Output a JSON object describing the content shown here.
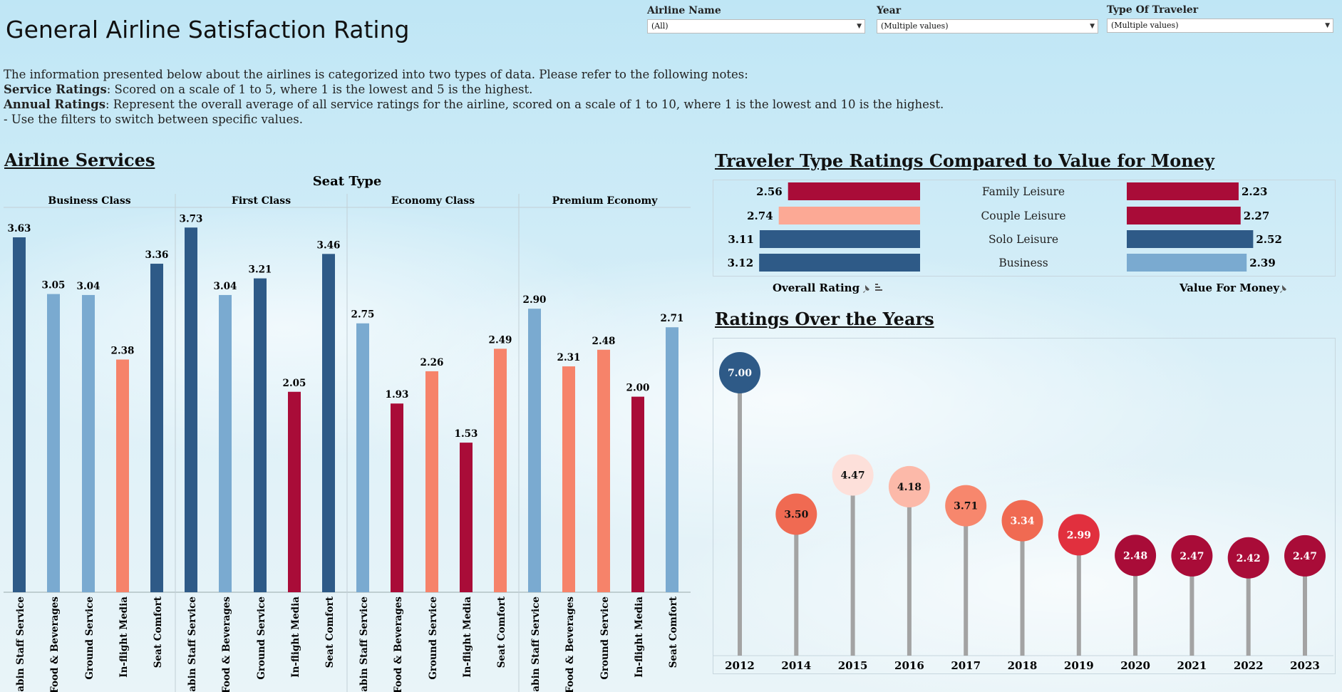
{
  "page": {
    "title": "General Airline Satisfaction Rating"
  },
  "filters": [
    {
      "label": "Airline Name",
      "value": "(All)"
    },
    {
      "label": "Year",
      "value": "(Multiple values)"
    },
    {
      "label": "Type Of Traveler",
      "value": "(Multiple values)"
    }
  ],
  "notes": {
    "intro": "The information presented below about the airlines is categorized into two types of data. Please refer to the following notes:",
    "service_label": "Service Ratings",
    "service_text": ": Scored on a scale of 1 to 5, where 1 is the lowest and 5 is the highest.",
    "annual_label": "Annual Ratings",
    "annual_text": ": Represent the overall average of all service ratings for the airline, scored on a scale of 1 to 10, where 1 is the lowest and 10 is the highest.",
    "filters_hint": "- Use the filters to switch between specific values."
  },
  "sections": {
    "airline_services": "Airline Services",
    "traveler_type": "Traveler Type Ratings Compared to Value for Money",
    "ratings_years": "Ratings Over the Years"
  },
  "colors": {
    "dark_blue": "#2e5a87",
    "light_blue": "#7aaad0",
    "salmon": "#f6836a",
    "crimson": "#a90c38",
    "pale_salmon": "#fca995",
    "pale_pink": "#fde0da",
    "red": "#e1303e",
    "stem": "#a3a3a3"
  },
  "chart_data": [
    {
      "id": "services",
      "type": "bar",
      "header": "Seat Type",
      "ylim": [
        0,
        3.9
      ],
      "groups": [
        {
          "name": "Business Class",
          "bars": [
            {
              "label": "Cabin Staff Service",
              "value": 3.63,
              "value_label": "3.63",
              "color": "#2e5a87"
            },
            {
              "label": "Food & Beverages",
              "value": 3.05,
              "value_label": "3.05",
              "color": "#7aaad0"
            },
            {
              "label": "Ground Service",
              "value": 3.04,
              "value_label": "3.04",
              "color": "#7aaad0"
            },
            {
              "label": "In-flight Media",
              "value": 2.38,
              "value_label": "2.38",
              "color": "#f6836a"
            },
            {
              "label": "Seat Comfort",
              "value": 3.36,
              "value_label": "3.36",
              "color": "#2e5a87"
            }
          ]
        },
        {
          "name": "First Class",
          "bars": [
            {
              "label": "Cabin Staff Service",
              "value": 3.73,
              "value_label": "3.73",
              "color": "#2e5a87"
            },
            {
              "label": "Food & Beverages",
              "value": 3.04,
              "value_label": "3.04",
              "color": "#7aaad0"
            },
            {
              "label": "Ground Service",
              "value": 3.21,
              "value_label": "3.21",
              "color": "#2e5a87"
            },
            {
              "label": "In-flight Media",
              "value": 2.05,
              "value_label": "2.05",
              "color": "#a90c38"
            },
            {
              "label": "Seat Comfort",
              "value": 3.46,
              "value_label": "3.46",
              "color": "#2e5a87"
            }
          ]
        },
        {
          "name": "Economy Class",
          "bars": [
            {
              "label": "Cabin Staff Service",
              "value": 2.75,
              "value_label": "2.75",
              "color": "#7aaad0"
            },
            {
              "label": "Food & Beverages",
              "value": 1.93,
              "value_label": "1.93",
              "color": "#a90c38"
            },
            {
              "label": "Ground Service",
              "value": 2.26,
              "value_label": "2.26",
              "color": "#f6836a"
            },
            {
              "label": "In-flight Media",
              "value": 1.53,
              "value_label": "1.53",
              "color": "#a90c38"
            },
            {
              "label": "Seat Comfort",
              "value": 2.49,
              "value_label": "2.49",
              "color": "#f6836a"
            }
          ]
        },
        {
          "name": "Premium Economy",
          "bars": [
            {
              "label": "Cabin Staff Service",
              "value": 2.9,
              "value_label": "2.90",
              "color": "#7aaad0"
            },
            {
              "label": "Food & Beverages",
              "value": 2.31,
              "value_label": "2.31",
              "color": "#f6836a"
            },
            {
              "label": "Ground Service",
              "value": 2.48,
              "value_label": "2.48",
              "color": "#f6836a"
            },
            {
              "label": "In-flight Media",
              "value": 2.0,
              "value_label": "2.00",
              "color": "#a90c38"
            },
            {
              "label": "Seat Comfort",
              "value": 2.71,
              "value_label": "2.71",
              "color": "#7aaad0"
            }
          ]
        }
      ]
    },
    {
      "id": "traveler",
      "type": "bar",
      "categories": [
        "Family Leisure",
        "Couple Leisure",
        "Solo Leisure",
        "Business"
      ],
      "series": [
        {
          "name": "Overall Rating",
          "values": [
            2.56,
            2.74,
            3.11,
            3.12
          ],
          "value_labels": [
            "2.56",
            "2.74",
            "3.11",
            "3.12"
          ],
          "colors": [
            "#a90c38",
            "#fca995",
            "#2e5a87",
            "#2e5a87"
          ]
        },
        {
          "name": "Value For Money",
          "values": [
            2.23,
            2.27,
            2.52,
            2.39
          ],
          "value_labels": [
            "2.23",
            "2.27",
            "2.52",
            "2.39"
          ],
          "colors": [
            "#a90c38",
            "#a90c38",
            "#2e5a87",
            "#7aaad0"
          ]
        }
      ],
      "left_xlim": [
        0,
        3.15
      ],
      "right_xlim": [
        0,
        2.6
      ]
    },
    {
      "id": "years",
      "type": "lollipop",
      "x": [
        "2012",
        "2014",
        "2015",
        "2016",
        "2017",
        "2018",
        "2019",
        "2020",
        "2021",
        "2022",
        "2023"
      ],
      "values": [
        7.0,
        3.5,
        4.47,
        4.18,
        3.71,
        3.34,
        2.99,
        2.48,
        2.47,
        2.42,
        2.47
      ],
      "value_labels": [
        "7.00",
        "3.50",
        "4.47",
        "4.18",
        "3.71",
        "3.34",
        "2.99",
        "2.48",
        "2.47",
        "2.42",
        "2.47"
      ],
      "colors": [
        "#2e5a87",
        "#f06a52",
        "#fde0da",
        "#fcb9a9",
        "#f7876d",
        "#f06a52",
        "#e1303e",
        "#a90c38",
        "#a90c38",
        "#a90c38",
        "#a90c38"
      ],
      "text_colors": [
        "#ffffff",
        "#111111",
        "#111111",
        "#111111",
        "#111111",
        "#ffffff",
        "#ffffff",
        "#ffffff",
        "#ffffff",
        "#ffffff",
        "#ffffff"
      ],
      "ylim": [
        0,
        7.6
      ]
    }
  ]
}
